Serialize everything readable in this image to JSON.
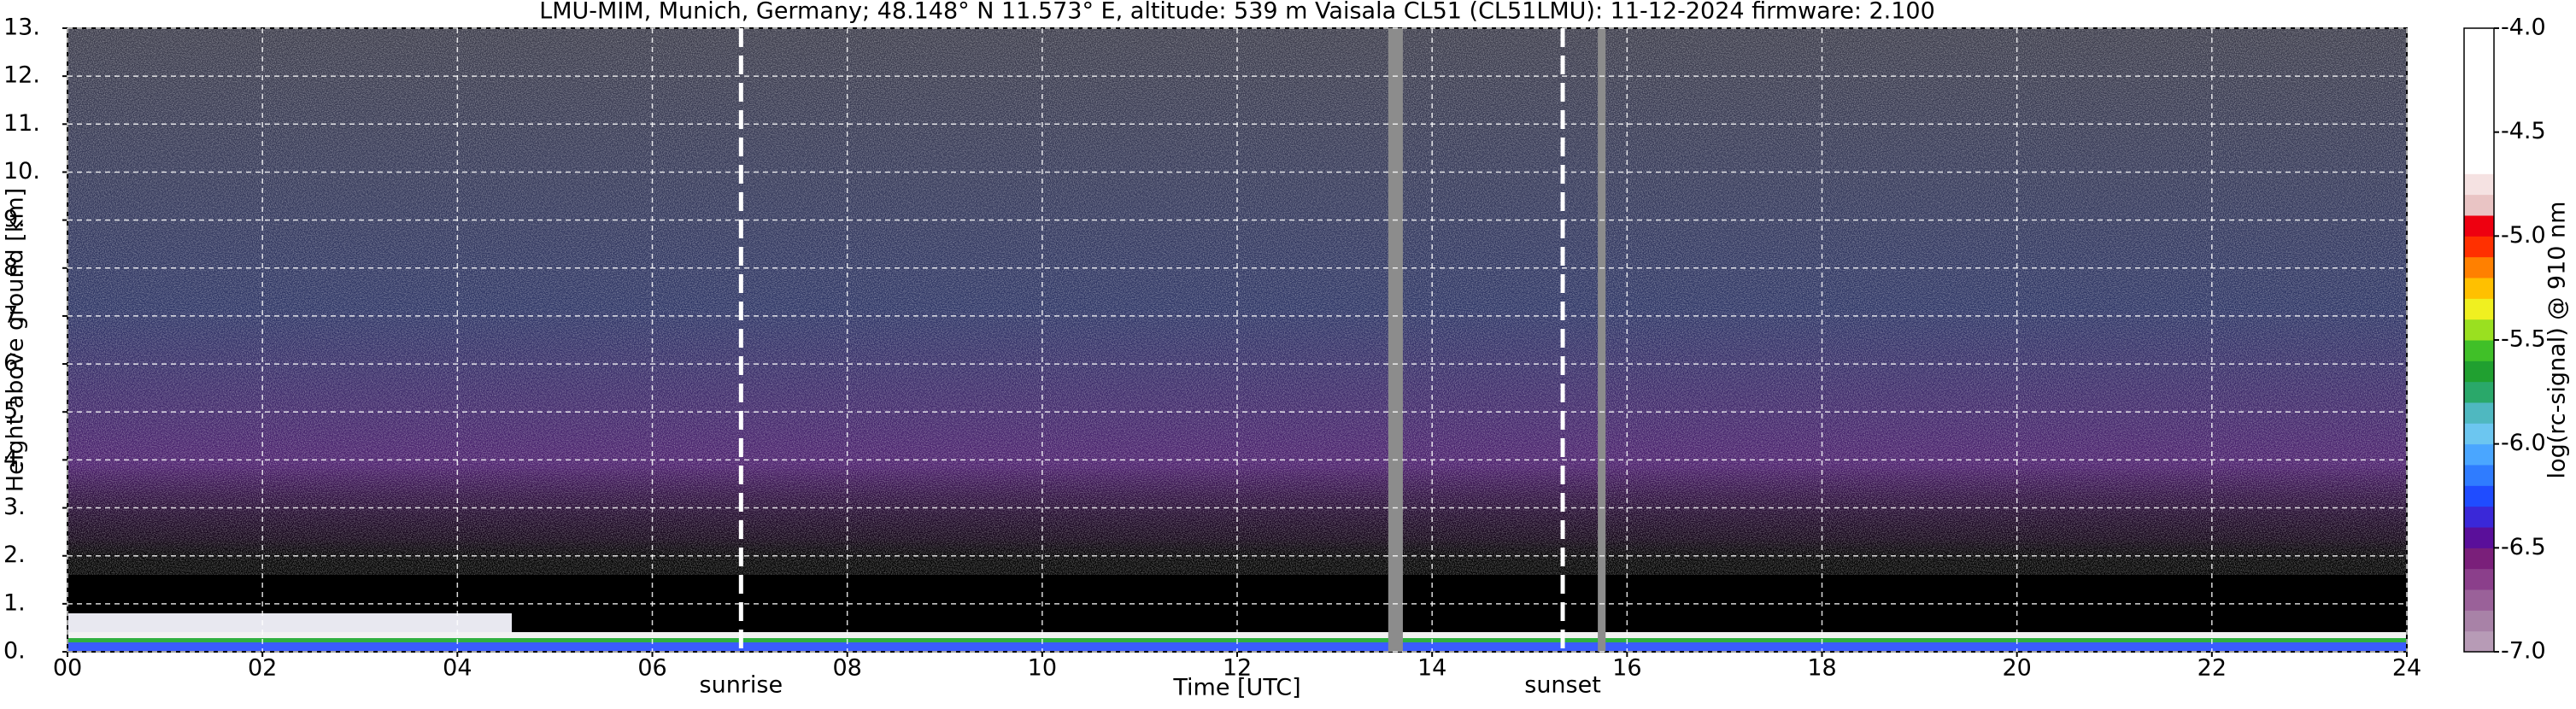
{
  "chart_data": {
    "type": "heatmap",
    "title": "LMU-MIM, Munich, Germany; 48.148° N 11.573° E, altitude: 539 m    Vaisala CL51 (CL51LMU): 11-12-2024    firmware: 2.100",
    "x_label": "Time [UTC]",
    "y_label": "Height above ground [km]",
    "xlim": [
      0,
      24
    ],
    "xticks": [
      {
        "value": 0,
        "label": "00"
      },
      {
        "value": 2,
        "label": "02"
      },
      {
        "value": 4,
        "label": "04"
      },
      {
        "value": 6,
        "label": "06"
      },
      {
        "value": 8,
        "label": "08"
      },
      10,
      12,
      14,
      16,
      18,
      20,
      22,
      24
    ],
    "ylim": [
      0,
      13
    ],
    "yticks": [
      {
        "value": 0,
        "label": "0."
      },
      {
        "value": 1,
        "label": "1."
      },
      {
        "value": 2,
        "label": "2."
      },
      {
        "value": 3,
        "label": "3."
      },
      {
        "value": 4,
        "label": "4."
      },
      {
        "value": 5,
        "label": "5."
      },
      {
        "value": 6,
        "label": "6."
      },
      {
        "value": 7,
        "label": "7."
      },
      {
        "value": 8,
        "label": "8."
      },
      {
        "value": 9,
        "label": "9."
      },
      {
        "value": 10,
        "label": "10."
      },
      {
        "value": 11,
        "label": "11."
      },
      {
        "value": 12,
        "label": "12."
      },
      {
        "value": 13,
        "label": "13."
      }
    ],
    "grid": true,
    "annotations": [
      {
        "label": "sunrise",
        "x": 6.91
      },
      {
        "label": "sunset",
        "x": 15.34
      }
    ],
    "gaps": [
      [
        13.55,
        13.7
      ],
      [
        15.7,
        15.78
      ]
    ],
    "gap_color": "#8c8c8c",
    "colorbar": {
      "label": "log(rc-signal) @ 910 nm",
      "lim": [
        -7,
        -4
      ],
      "ticks": [
        {
          "value": -4,
          "label": "-4.0"
        },
        -4.5,
        {
          "value": -5,
          "label": "-5.0"
        },
        -5.5,
        {
          "value": -6,
          "label": "-6.0"
        },
        -6.5,
        {
          "value": -7,
          "label": "-7.0"
        }
      ],
      "colors": [
        "#b79bb6",
        "#a882a7",
        "#9a6199",
        "#8b3f8b",
        "#7a1f7a",
        "#5a0f9a",
        "#3a28d8",
        "#1f4cff",
        "#2f7cff",
        "#4aa6ff",
        "#6cc6f0",
        "#4fb8c0",
        "#2aa86a",
        "#20a030",
        "#40c028",
        "#9ae020",
        "#f0f020",
        "#ffc000",
        "#ff8000",
        "#ff3000",
        "#ee0010",
        "#e9c4c4",
        "#f5e2e2",
        "#ffffff",
        "#ffffff",
        "#ffffff",
        "#ffffff",
        "#ffffff",
        "#ffffff",
        "#ffffff"
      ]
    }
  }
}
